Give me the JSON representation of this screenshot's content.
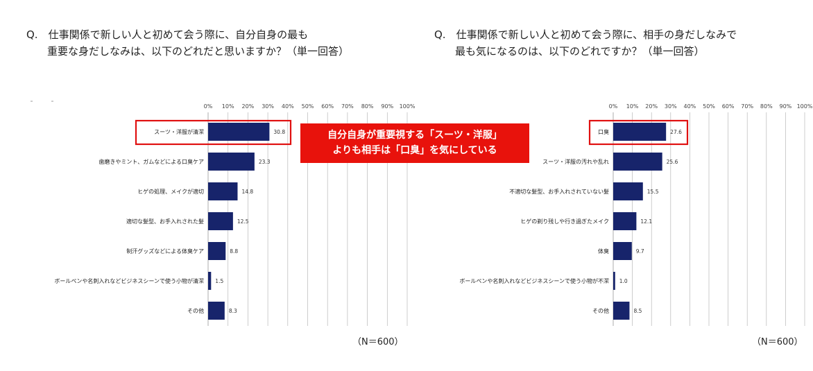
{
  "left": {
    "question_line1": "Q.　仕事関係で新しい人と初めて会う際に、自分自身の最も",
    "question_line2": "　　重要な身だしなみは、以下のどれだと思いますか？（単一回答）",
    "n_label": "（N＝600）"
  },
  "right": {
    "question_line1": "Q.　仕事関係で新しい人と初めて会う際に、相手の身だしなみで",
    "question_line2": "　　最も気になるのは、以下のどれですか？（単一回答）",
    "n_label": "（N＝600）"
  },
  "callout": {
    "line1": "自分自身が重要視する「スーツ・洋服」",
    "line2": "よりも相手は「口臭」を気にしている"
  },
  "colors": {
    "bar": "#17246b",
    "highlight": "#e01010",
    "callout_bg": "#e8120c"
  },
  "chart_data": [
    {
      "type": "bar",
      "orientation": "horizontal",
      "ticks": [
        "0%",
        "10%",
        "20%",
        "30%",
        "40%",
        "50%",
        "60%",
        "70%",
        "80%",
        "90%",
        "100%"
      ],
      "xlim": [
        0,
        100
      ],
      "grid": true,
      "categories": [
        "スーツ・洋服が清潔",
        "歯磨きやミント、ガムなどによる口臭ケア",
        "ヒゲの処理、メイクが適切",
        "適切な髪型、お手入れされた髪",
        "制汗グッズなどによる体臭ケア",
        "ボールペンや名刺入れなどビジネスシーンで使う小物が清潔",
        "その他"
      ],
      "values": [
        30.8,
        23.3,
        14.8,
        12.5,
        8.8,
        1.5,
        8.3
      ],
      "value_labels": [
        "30.8",
        "23.3",
        "14.8",
        "12.5",
        "8.8",
        "1.5",
        "8.3"
      ],
      "highlighted_category": "スーツ・洋服が清潔"
    },
    {
      "type": "bar",
      "orientation": "horizontal",
      "ticks": [
        "0%",
        "10%",
        "20%",
        "30%",
        "40%",
        "50%",
        "60%",
        "70%",
        "80%",
        "90%",
        "100%"
      ],
      "xlim": [
        0,
        100
      ],
      "grid": true,
      "categories": [
        "口臭",
        "スーツ・洋服の汚れや乱れ",
        "不適切な髪型、お手入れされていない髪",
        "ヒゲの剃り残しや行き過ぎたメイク",
        "体臭",
        "ボールペンや名刺入れなどビジネスシーンで使う小物が不潔",
        "その他"
      ],
      "values": [
        27.6,
        25.6,
        15.5,
        12.1,
        9.7,
        1.0,
        8.5
      ],
      "value_labels": [
        "27.6",
        "25.6",
        "15.5",
        "12.1",
        "9.7",
        "1.0",
        "8.5"
      ],
      "highlighted_category": "口臭"
    }
  ]
}
